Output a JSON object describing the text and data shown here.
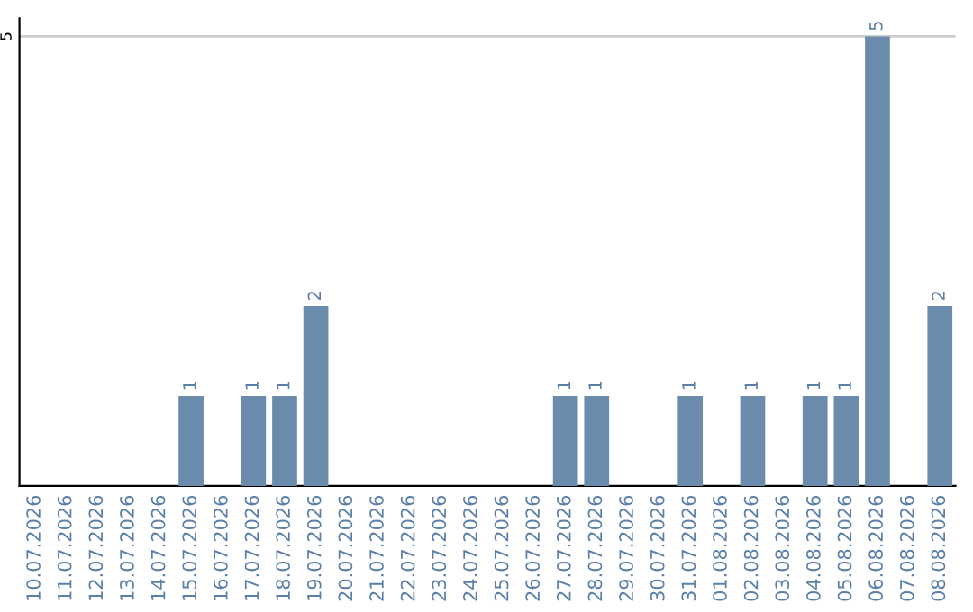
{
  "chart_data": {
    "type": "bar",
    "categories": [
      "10.07.2026",
      "11.07.2026",
      "12.07.2026",
      "13.07.2026",
      "14.07.2026",
      "15.07.2026",
      "16.07.2026",
      "17.07.2026",
      "18.07.2026",
      "19.07.2026",
      "20.07.2026",
      "21.07.2026",
      "22.07.2026",
      "23.07.2026",
      "24.07.2026",
      "25.07.2026",
      "26.07.2026",
      "27.07.2026",
      "28.07.2026",
      "29.07.2026",
      "30.07.2026",
      "31.07.2026",
      "01.08.2026",
      "02.08.2026",
      "03.08.2026",
      "04.08.2026",
      "05.08.2026",
      "06.08.2026",
      "07.08.2026",
      "08.08.2026"
    ],
    "values": [
      0,
      0,
      0,
      0,
      0,
      1,
      0,
      1,
      1,
      2,
      0,
      0,
      0,
      0,
      0,
      0,
      0,
      1,
      1,
      0,
      0,
      1,
      0,
      1,
      0,
      1,
      1,
      5,
      0,
      2
    ],
    "value_labels": [
      null,
      null,
      null,
      null,
      null,
      "1",
      null,
      "1",
      "1",
      "2",
      null,
      null,
      null,
      null,
      null,
      null,
      null,
      "1",
      "1",
      null,
      null,
      "1",
      null,
      "1",
      null,
      "1",
      "1",
      "5",
      null,
      "2"
    ],
    "color": "#6a8bab",
    "ylim": [
      0,
      5.2
    ],
    "yticks": [
      5
    ],
    "grid": "y"
  }
}
